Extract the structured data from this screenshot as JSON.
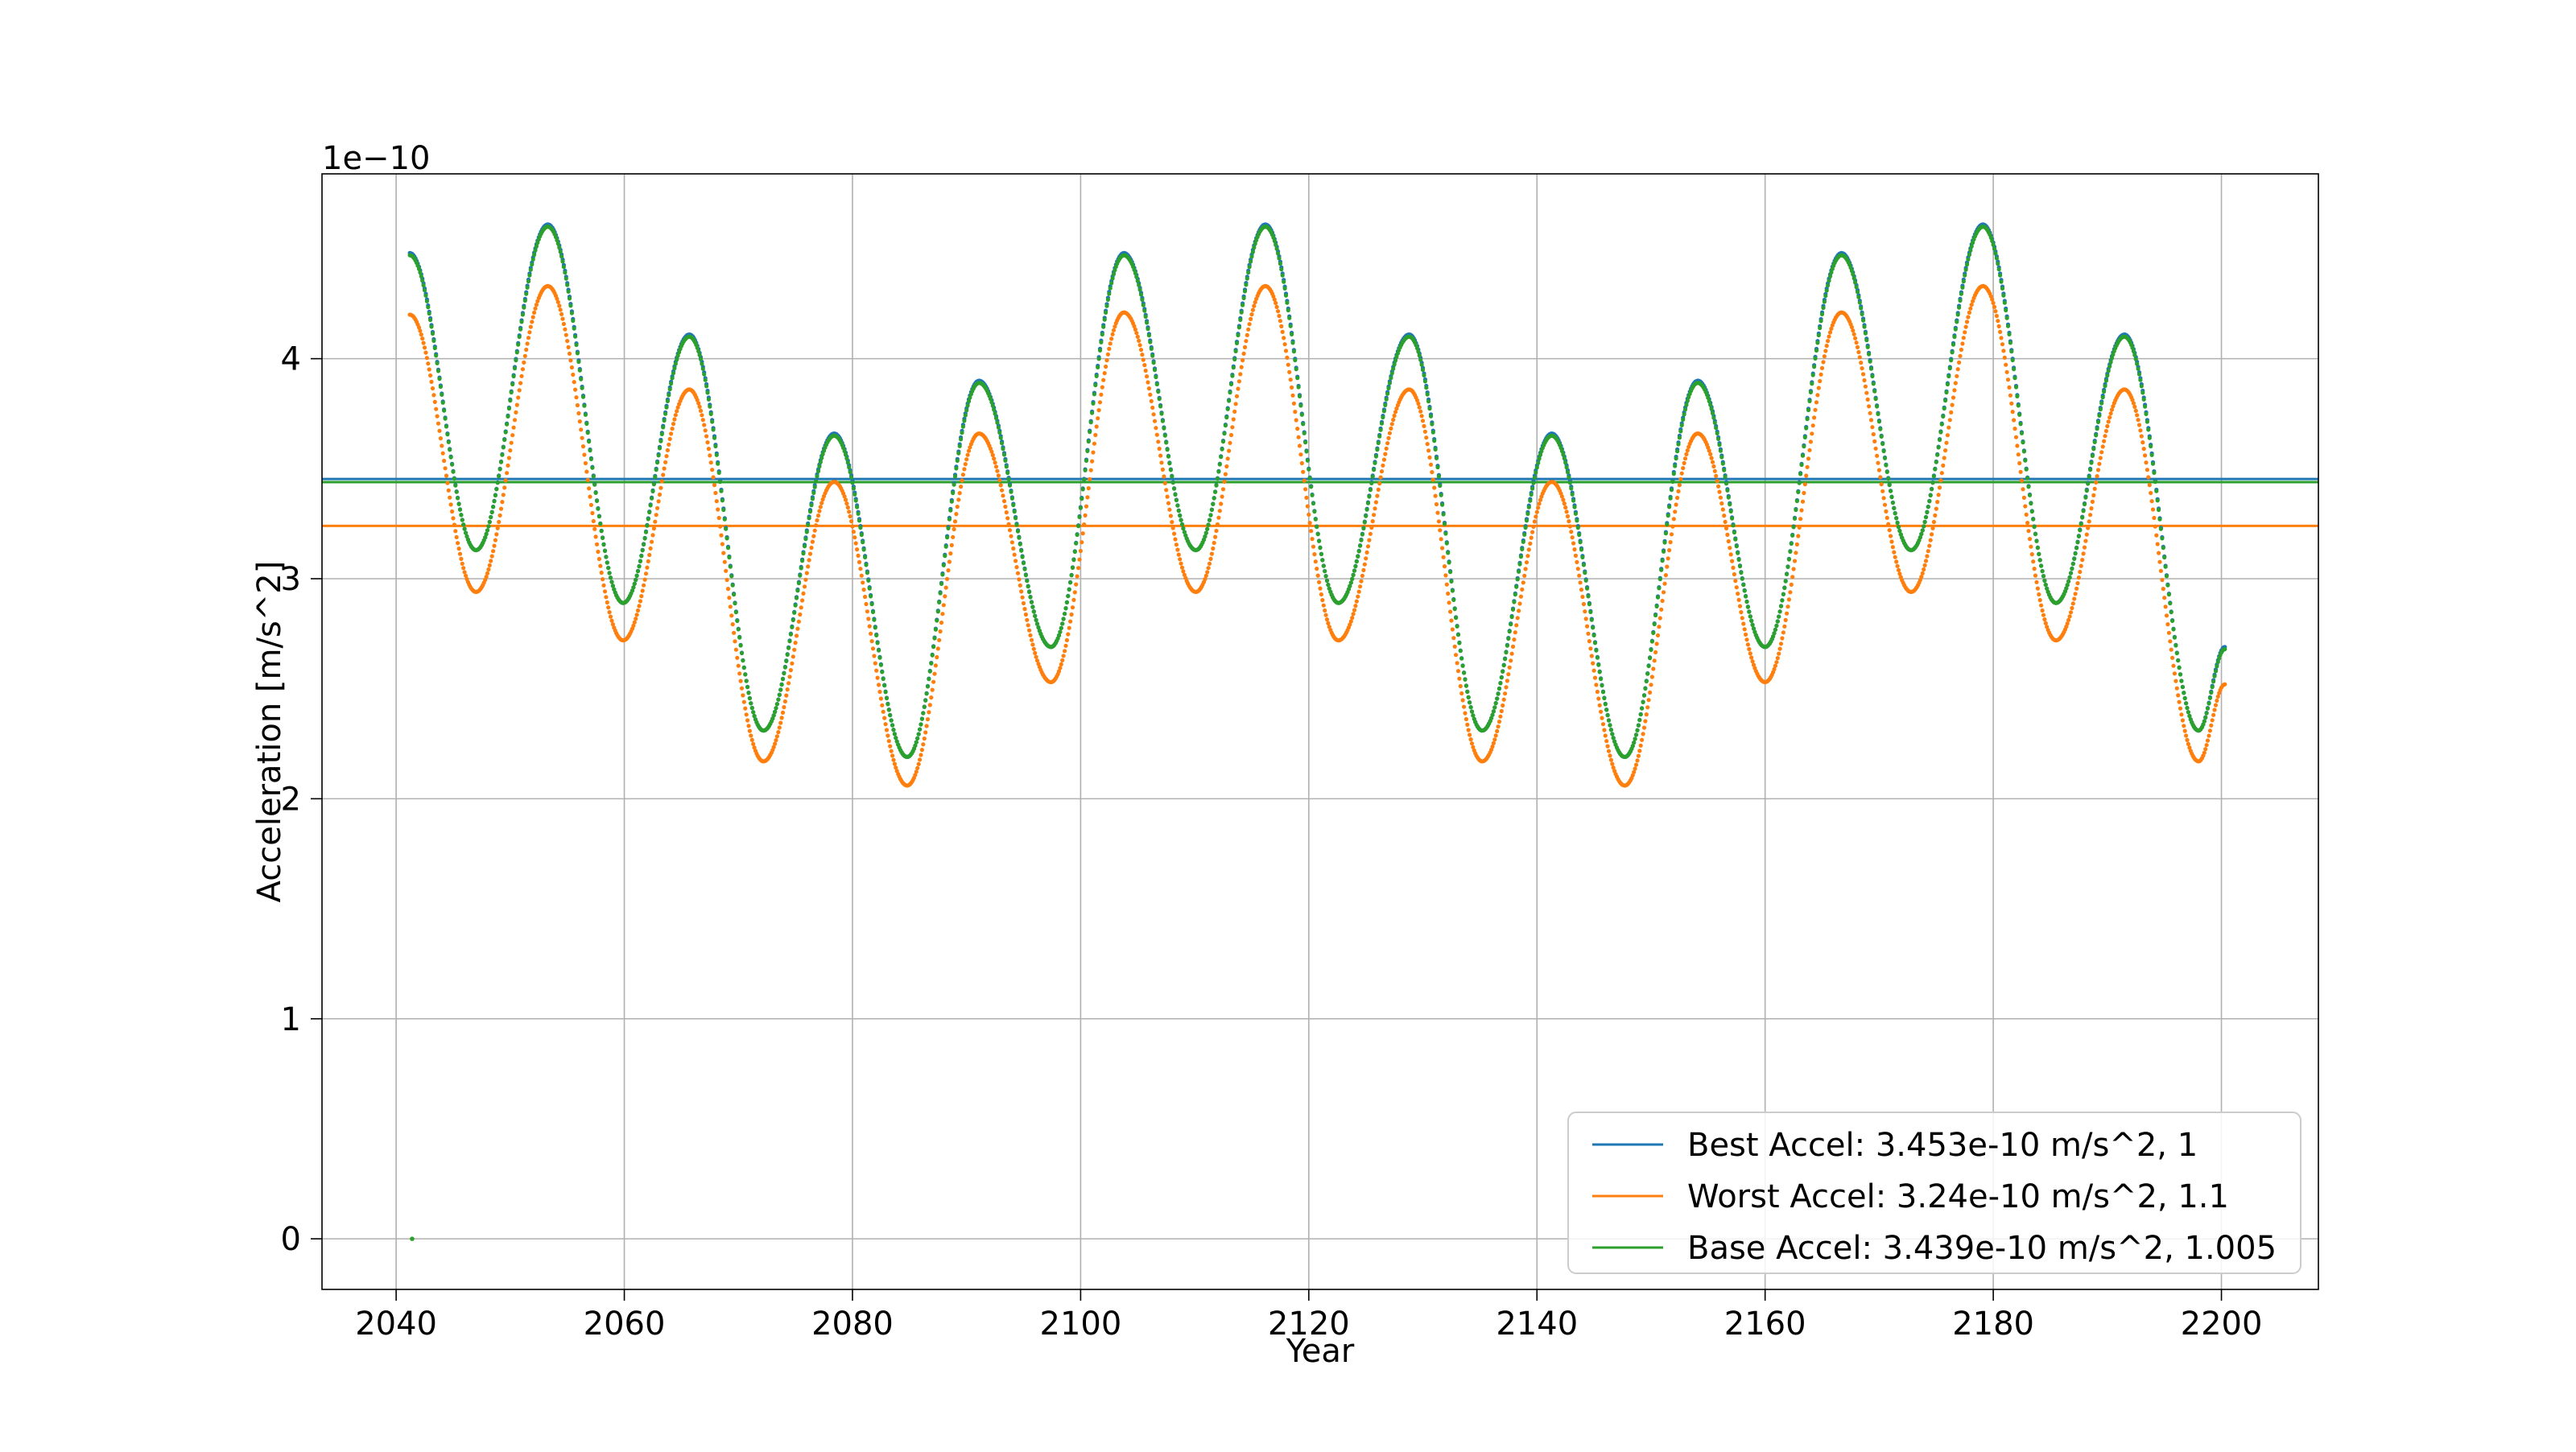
{
  "chart_data": {
    "type": "scatter",
    "title": "",
    "xlabel": "Year",
    "ylabel": "Acceleration [m/s^2]",
    "offset_label": "1e−10",
    "xlim": [
      2033.5,
      2208.5
    ],
    "ylim": [
      -0.23,
      4.84
    ],
    "x_ticks": [
      2040,
      2060,
      2080,
      2100,
      2120,
      2140,
      2160,
      2180,
      2200
    ],
    "y_ticks": [
      0,
      1,
      2,
      3,
      4
    ],
    "grid": true,
    "legend_position": "lower-right",
    "x_range": [
      2041.2,
      2200.3
    ],
    "stray_point": {
      "x": 2041.4,
      "y": 0
    },
    "series": [
      {
        "name": "Best Accel: 3.453e-10 m/s^2, 1",
        "reference": 3.453,
        "color": "#1f77b4",
        "scatter_points": [
          [
            2041.2,
            4.48
          ],
          [
            2047.0,
            3.13
          ],
          [
            2053.3,
            4.61
          ],
          [
            2059.9,
            2.89
          ],
          [
            2065.7,
            4.11
          ],
          [
            2072.2,
            2.31
          ],
          [
            2078.4,
            3.66
          ],
          [
            2084.8,
            2.19
          ],
          [
            2091.1,
            3.9
          ],
          [
            2097.4,
            2.69
          ],
          [
            2103.8,
            4.48
          ],
          [
            2110.1,
            3.13
          ],
          [
            2116.2,
            4.61
          ],
          [
            2122.6,
            2.89
          ],
          [
            2128.8,
            4.11
          ],
          [
            2135.2,
            2.31
          ],
          [
            2141.3,
            3.66
          ],
          [
            2147.7,
            2.19
          ],
          [
            2154.1,
            3.9
          ],
          [
            2160.0,
            2.69
          ],
          [
            2166.7,
            4.48
          ],
          [
            2172.8,
            3.13
          ],
          [
            2179.1,
            4.61
          ],
          [
            2185.5,
            2.89
          ],
          [
            2191.5,
            4.11
          ],
          [
            2198.0,
            2.31
          ],
          [
            2200.3,
            2.69
          ]
        ]
      },
      {
        "name": "Worst Accel: 3.24e-10 m/s^2, 1.1",
        "reference": 3.24,
        "color": "#ff7f0e",
        "scatter_points": [
          [
            2041.2,
            4.2
          ],
          [
            2047.0,
            2.94
          ],
          [
            2053.3,
            4.33
          ],
          [
            2059.9,
            2.72
          ],
          [
            2065.7,
            3.86
          ],
          [
            2072.2,
            2.17
          ],
          [
            2078.4,
            3.44
          ],
          [
            2084.8,
            2.06
          ],
          [
            2091.1,
            3.66
          ],
          [
            2097.4,
            2.53
          ],
          [
            2103.8,
            4.21
          ],
          [
            2110.1,
            2.94
          ],
          [
            2116.2,
            4.33
          ],
          [
            2122.6,
            2.72
          ],
          [
            2128.8,
            3.86
          ],
          [
            2135.2,
            2.17
          ],
          [
            2141.3,
            3.44
          ],
          [
            2147.7,
            2.06
          ],
          [
            2154.1,
            3.66
          ],
          [
            2160.0,
            2.53
          ],
          [
            2166.7,
            4.21
          ],
          [
            2172.8,
            2.94
          ],
          [
            2179.1,
            4.33
          ],
          [
            2185.5,
            2.72
          ],
          [
            2191.5,
            3.86
          ],
          [
            2198.0,
            2.17
          ],
          [
            2200.3,
            2.52
          ]
        ]
      },
      {
        "name": "Base Accel: 3.439e-10 m/s^2, 1.005",
        "reference": 3.439,
        "color": "#2ca02c",
        "scatter_points": [
          [
            2041.2,
            4.47
          ],
          [
            2047.0,
            3.13
          ],
          [
            2053.3,
            4.6
          ],
          [
            2059.9,
            2.89
          ],
          [
            2065.7,
            4.1
          ],
          [
            2072.2,
            2.31
          ],
          [
            2078.4,
            3.65
          ],
          [
            2084.8,
            2.19
          ],
          [
            2091.1,
            3.89
          ],
          [
            2097.4,
            2.69
          ],
          [
            2103.8,
            4.47
          ],
          [
            2110.1,
            3.13
          ],
          [
            2116.2,
            4.6
          ],
          [
            2122.6,
            2.89
          ],
          [
            2128.8,
            4.1
          ],
          [
            2135.2,
            2.31
          ],
          [
            2141.3,
            3.65
          ],
          [
            2147.7,
            2.19
          ],
          [
            2154.1,
            3.89
          ],
          [
            2160.0,
            2.69
          ],
          [
            2166.7,
            4.47
          ],
          [
            2172.8,
            3.13
          ],
          [
            2179.1,
            4.6
          ],
          [
            2185.5,
            2.89
          ],
          [
            2191.5,
            4.1
          ],
          [
            2198.0,
            2.31
          ],
          [
            2200.3,
            2.68
          ]
        ]
      }
    ]
  }
}
